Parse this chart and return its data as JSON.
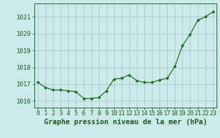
{
  "x": [
    0,
    1,
    2,
    3,
    4,
    5,
    6,
    7,
    8,
    9,
    10,
    11,
    12,
    13,
    14,
    15,
    16,
    17,
    18,
    19,
    20,
    21,
    22,
    23
  ],
  "y": [
    1017.1,
    1016.8,
    1016.65,
    1016.65,
    1016.6,
    1016.55,
    1016.15,
    1016.15,
    1016.2,
    1016.6,
    1017.3,
    1017.35,
    1017.55,
    1017.2,
    1017.1,
    1017.1,
    1017.25,
    1017.35,
    1018.05,
    1019.3,
    1019.95,
    1020.8,
    1021.0,
    1021.3
  ],
  "line_color": "#1a6b1a",
  "marker": "D",
  "marker_size": 2.2,
  "bg_color": "#cdeaea",
  "grid_color": "#a8c8c8",
  "xlabel": "Graphe pression niveau de la mer (hPa)",
  "xlabel_color": "#1a5c1a",
  "xlabel_fontsize": 7.5,
  "tick_label_color": "#1a5c1a",
  "tick_fontsize": 6.5,
  "ylim": [
    1015.6,
    1021.8
  ],
  "yticks": [
    1016,
    1017,
    1018,
    1019,
    1020,
    1021
  ],
  "xlim": [
    -0.5,
    23.5
  ],
  "xticks": [
    0,
    1,
    2,
    3,
    4,
    5,
    6,
    7,
    8,
    9,
    10,
    11,
    12,
    13,
    14,
    15,
    16,
    17,
    18,
    19,
    20,
    21,
    22,
    23
  ]
}
